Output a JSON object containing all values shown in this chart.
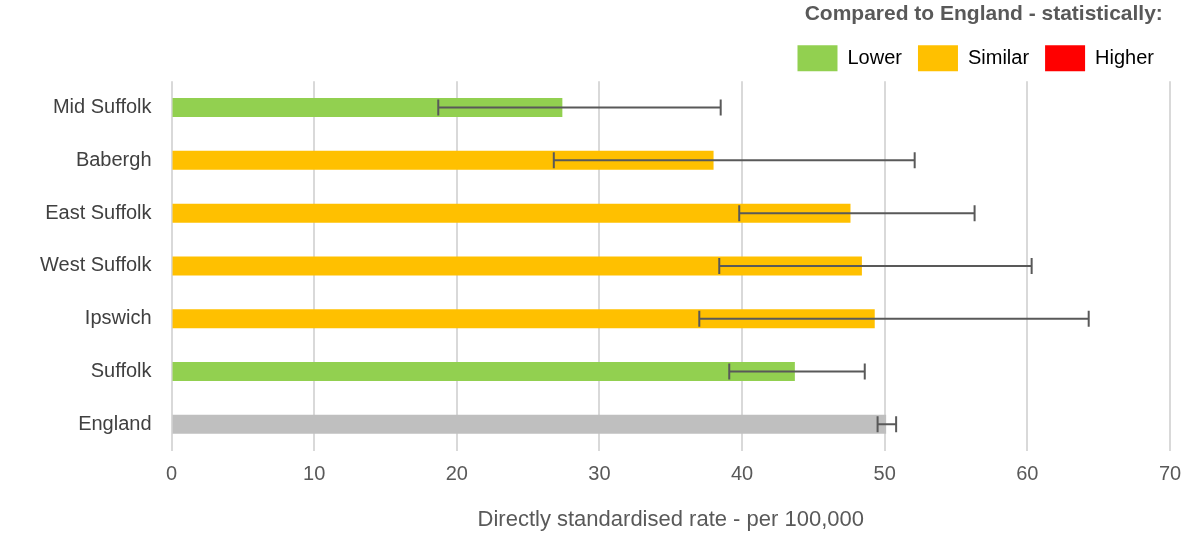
{
  "chart_data": {
    "type": "bar",
    "orientation": "horizontal",
    "stacked": true,
    "categories": [
      "Mid Suffolk",
      "Babergh",
      "East Suffolk",
      "West Suffolk",
      "Ipswich",
      "Suffolk",
      "England"
    ],
    "series": [
      {
        "name": "Lower",
        "color": "#92d050",
        "values": [
          27.4,
          null,
          null,
          null,
          null,
          43.7,
          null
        ],
        "errors": [
          [
            18.7,
            38.5
          ],
          null,
          null,
          null,
          null,
          [
            39.1,
            48.6
          ],
          null
        ]
      },
      {
        "name": "Similar",
        "color": "#ffc000",
        "values": [
          null,
          38.0,
          47.6,
          48.4,
          49.3,
          null,
          null
        ],
        "errors": [
          null,
          [
            26.8,
            52.1
          ],
          [
            39.8,
            56.3
          ],
          [
            38.4,
            60.3
          ],
          [
            37.0,
            64.3
          ],
          null,
          null
        ]
      },
      {
        "name": "Higher",
        "color": "#ff0000",
        "values": [
          null,
          null,
          null,
          null,
          null,
          null,
          null
        ]
      },
      {
        "color": "#bfbfbf",
        "values": [
          null,
          null,
          null,
          null,
          null,
          null,
          50.1
        ],
        "errors": [
          null,
          null,
          null,
          null,
          null,
          null,
          [
            49.5,
            50.8
          ]
        ]
      }
    ],
    "xlabel": "Directly standardised rate - per 100,000",
    "legend_title": "Compared to England - statistically:",
    "legend": "top right",
    "xlim": [
      0,
      70
    ],
    "xticks": [
      0,
      10,
      20,
      30,
      40,
      50,
      60,
      70
    ],
    "grid": "x"
  }
}
